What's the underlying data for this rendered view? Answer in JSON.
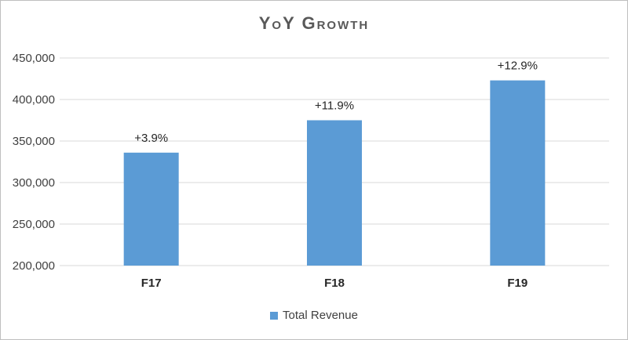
{
  "chart_data": {
    "type": "bar",
    "title": "YoY Growth",
    "categories": [
      "F17",
      "F18",
      "F19"
    ],
    "series": [
      {
        "name": "Total Revenue",
        "values": [
          336000,
          375000,
          423000
        ],
        "data_labels": [
          "+3.9%",
          "+11.9%",
          "+12.9%"
        ]
      }
    ],
    "ylim": [
      200000,
      450000
    ],
    "yticks": [
      200000,
      250000,
      300000,
      350000,
      400000,
      450000
    ],
    "ytick_labels": [
      "200,000",
      "250,000",
      "300,000",
      "350,000",
      "400,000",
      "450,000"
    ],
    "grid": true,
    "legend_position": "bottom",
    "colors": {
      "bar": "#5b9bd5",
      "grid": "#d9d9d9"
    }
  }
}
